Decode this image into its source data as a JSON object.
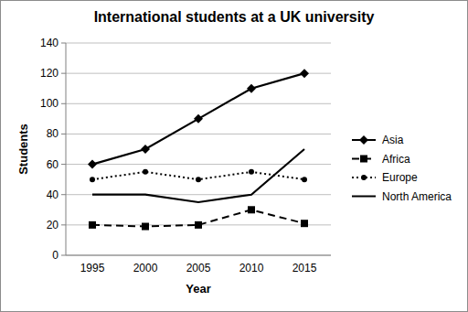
{
  "chart_data": {
    "type": "line",
    "title": "International students at a UK university",
    "x_label": "Year",
    "y_label": "Students",
    "categories": [
      "1995",
      "2000",
      "2005",
      "2010",
      "2015"
    ],
    "series": [
      {
        "name": "Asia",
        "color": "#000000",
        "marker": "diamond",
        "line_style": "solid",
        "values": [
          60,
          70,
          90,
          110,
          120
        ]
      },
      {
        "name": "Africa",
        "color": "#000000",
        "marker": "square",
        "line_style": "dashed",
        "values": [
          20,
          19,
          20,
          30,
          21
        ]
      },
      {
        "name": "Europe",
        "color": "#000000",
        "marker": "circle",
        "line_style": "dotted",
        "values": [
          50,
          55,
          50,
          55,
          50
        ]
      },
      {
        "name": "North America",
        "color": "#000000",
        "marker": "none",
        "line_style": "solid",
        "values": [
          40,
          40,
          35,
          40,
          70
        ]
      }
    ],
    "ylim": [
      0,
      140
    ],
    "yticks": [
      0,
      20,
      40,
      60,
      80,
      100,
      120,
      140
    ],
    "grid": true,
    "legend": "right"
  }
}
